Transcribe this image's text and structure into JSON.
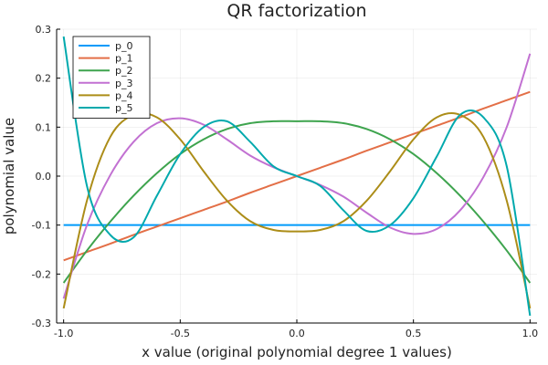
{
  "chart_data": {
    "type": "line",
    "title": "QR factorization",
    "xlabel": "x value (original polynomial degree 1 values)",
    "ylabel": "polynomial value",
    "xlim": [
      -1.03,
      1.03
    ],
    "ylim": [
      -0.3,
      0.3
    ],
    "xticks": [
      -1.0,
      -0.5,
      0.0,
      0.5,
      1.0
    ],
    "xtick_labels": [
      "-1.0",
      "-0.5",
      "0.0",
      "0.5",
      "1.0"
    ],
    "yticks": [
      -0.3,
      -0.2,
      -0.1,
      0.0,
      0.1,
      0.2,
      0.3
    ],
    "ytick_labels": [
      "-0.3",
      "-0.2",
      "-0.1",
      "0.0",
      "0.1",
      "0.2",
      "0.3"
    ],
    "grid": true,
    "legend_position": "top-left",
    "x": [
      -1.0,
      -0.9,
      -0.8,
      -0.7,
      -0.6,
      -0.5,
      -0.4,
      -0.3,
      -0.2,
      -0.1,
      0.0,
      0.1,
      0.2,
      0.3,
      0.4,
      0.5,
      0.6,
      0.7,
      0.8,
      0.9,
      1.0
    ],
    "series": [
      {
        "name": "p_0",
        "color": "#009AFA",
        "values": [
          -0.1,
          -0.1,
          -0.1,
          -0.1,
          -0.1,
          -0.1,
          -0.1,
          -0.1,
          -0.1,
          -0.1,
          -0.1,
          -0.1,
          -0.1,
          -0.1,
          -0.1,
          -0.1,
          -0.1,
          -0.1,
          -0.1,
          -0.1,
          -0.1
        ]
      },
      {
        "name": "p_1",
        "color": "#E36F47",
        "values": [
          -0.172,
          -0.155,
          -0.138,
          -0.12,
          -0.103,
          -0.086,
          -0.069,
          -0.052,
          -0.034,
          -0.017,
          0.0,
          0.017,
          0.034,
          0.052,
          0.069,
          0.086,
          0.103,
          0.12,
          0.138,
          0.155,
          0.172
        ]
      },
      {
        "name": "p_2",
        "color": "#3EA44E",
        "values": [
          -0.218,
          -0.152,
          -0.093,
          -0.04,
          0.006,
          0.045,
          0.075,
          0.096,
          0.108,
          0.112,
          0.112,
          0.112,
          0.108,
          0.096,
          0.075,
          0.045,
          0.006,
          -0.04,
          -0.093,
          -0.152,
          -0.218
        ]
      },
      {
        "name": "p_3",
        "color": "#C271D2",
        "values": [
          -0.25,
          -0.1,
          0.002,
          0.07,
          0.108,
          0.118,
          0.105,
          0.075,
          0.042,
          0.018,
          0.0,
          -0.018,
          -0.042,
          -0.075,
          -0.105,
          -0.118,
          -0.108,
          -0.07,
          -0.002,
          0.1,
          0.25
        ]
      },
      {
        "name": "p_4",
        "color": "#AC8D18",
        "values": [
          -0.27,
          -0.05,
          0.08,
          0.125,
          0.12,
          0.075,
          0.01,
          -0.05,
          -0.092,
          -0.11,
          -0.113,
          -0.11,
          -0.092,
          -0.05,
          0.01,
          0.075,
          0.12,
          0.125,
          0.08,
          -0.05,
          -0.27
        ]
      },
      {
        "name": "p_5",
        "color": "#00A9AD",
        "values": [
          0.285,
          -0.02,
          -0.12,
          -0.125,
          -0.04,
          0.045,
          0.1,
          0.112,
          0.07,
          0.02,
          0.0,
          -0.02,
          -0.07,
          -0.112,
          -0.1,
          -0.045,
          0.04,
          0.125,
          0.12,
          0.02,
          -0.285
        ]
      }
    ]
  }
}
